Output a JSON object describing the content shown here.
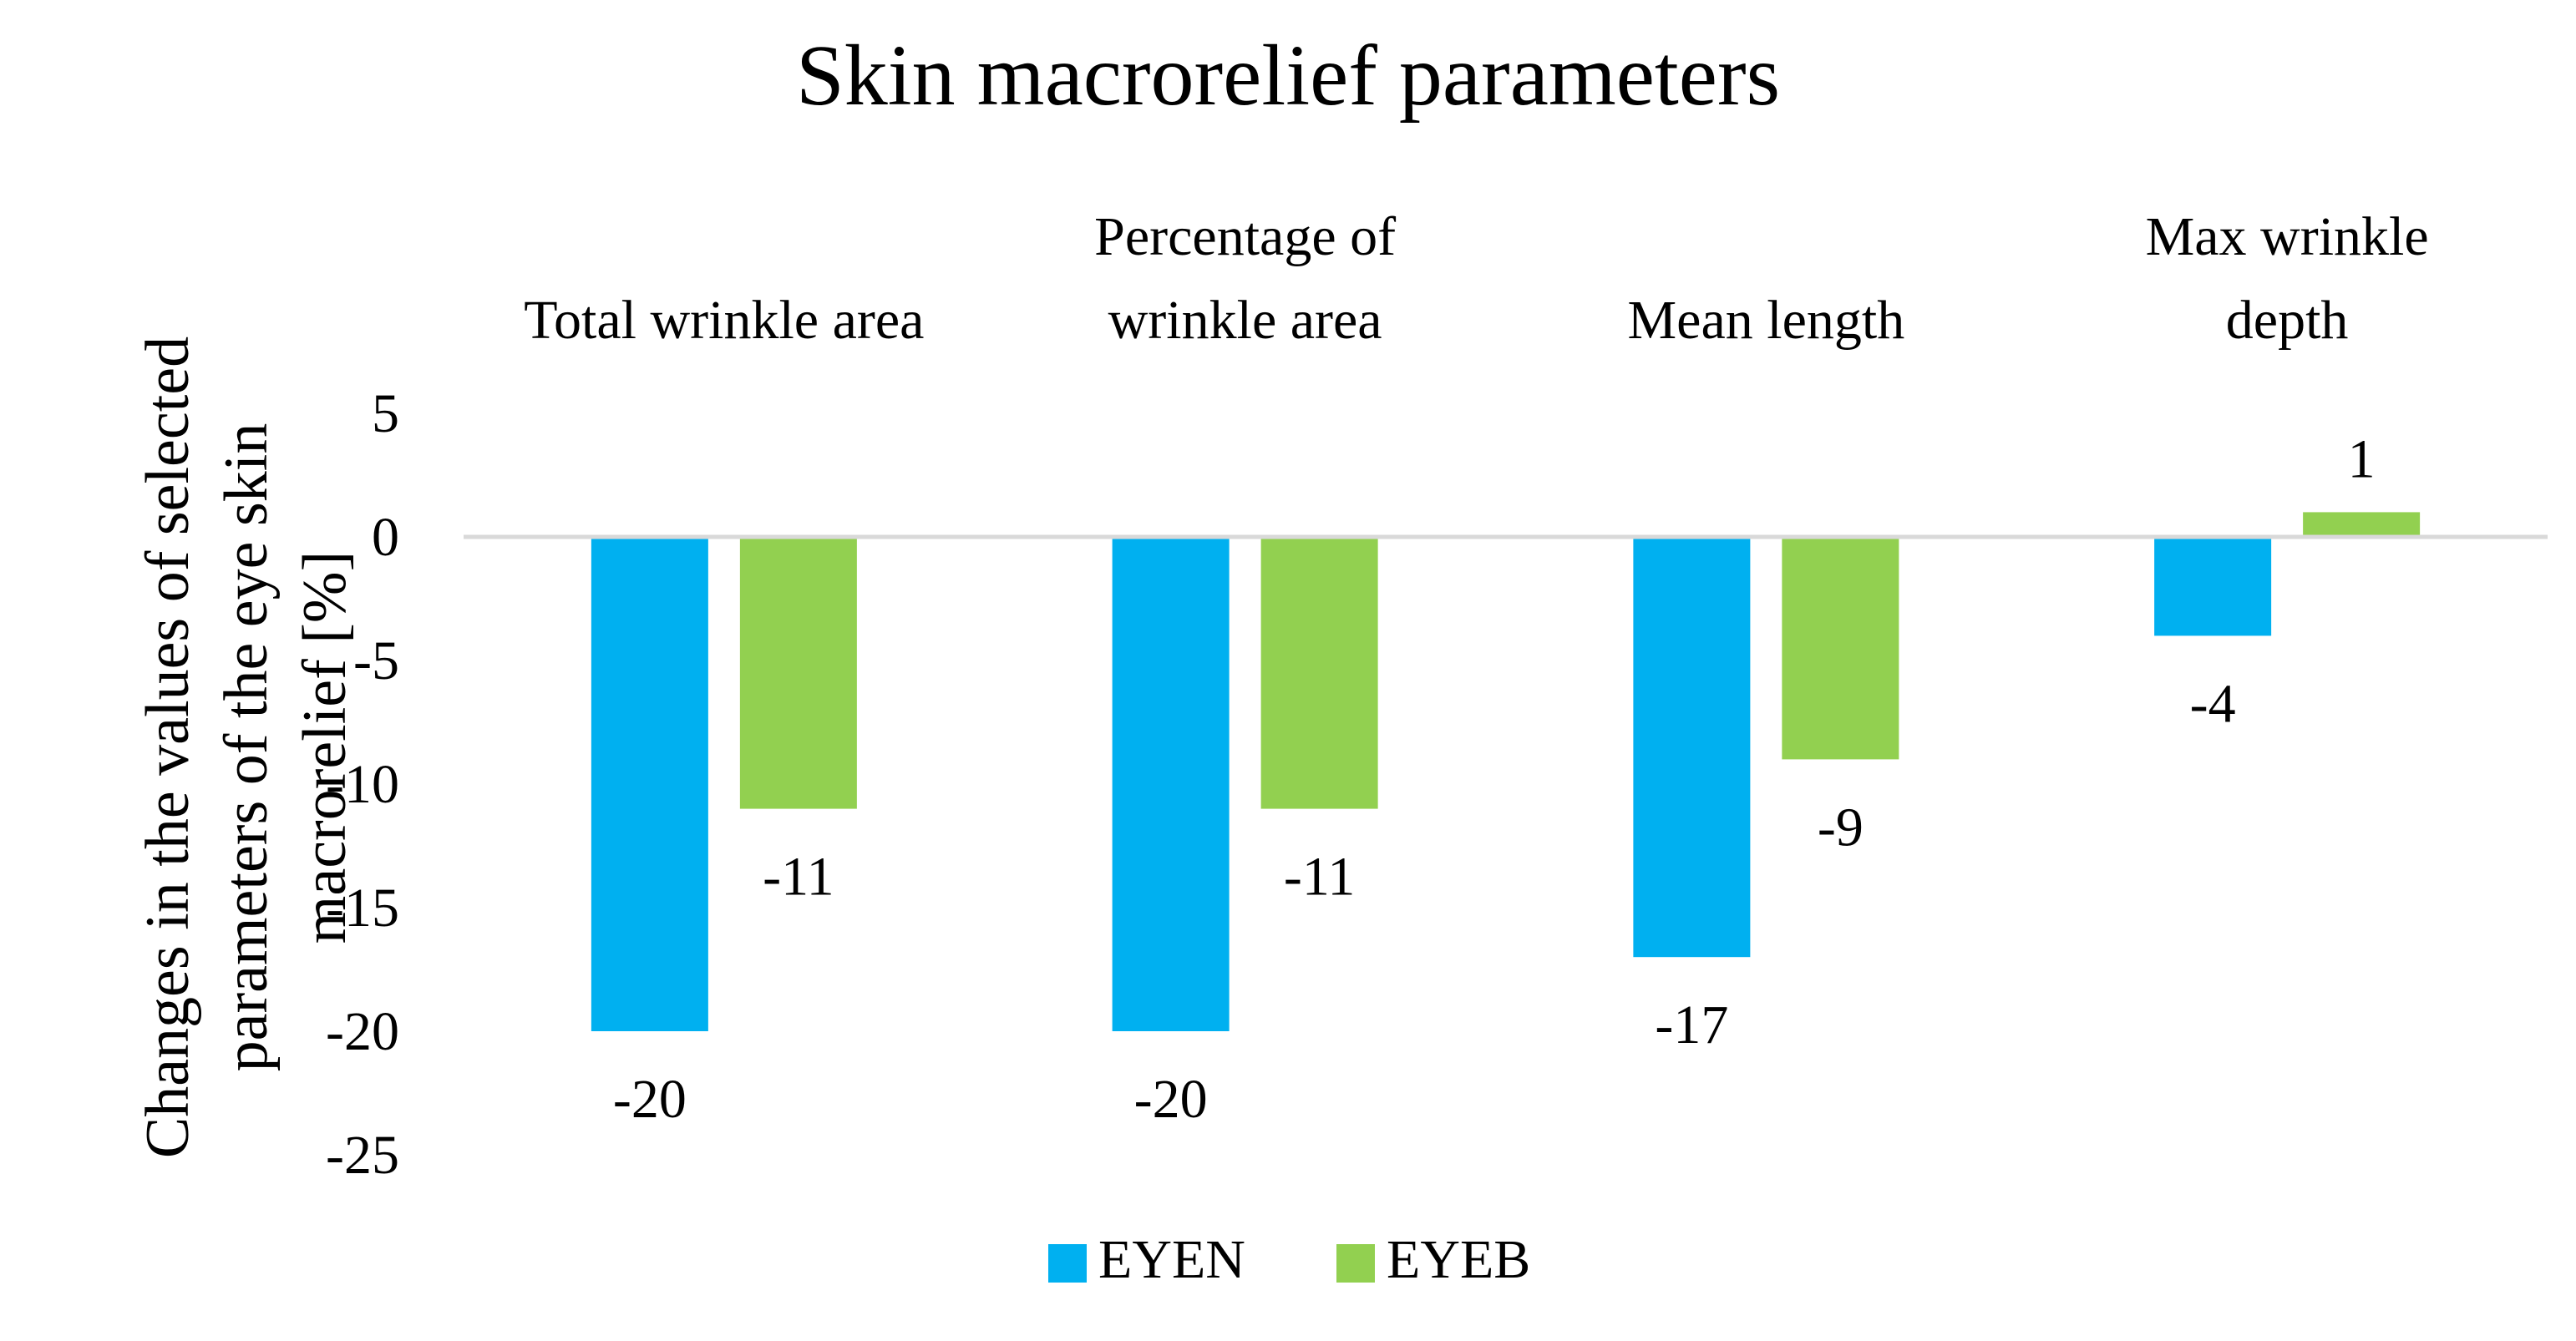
{
  "chart_data": {
    "type": "bar",
    "title": "Skin macrorelief parameters",
    "ylabel": [
      "Changes in the values of selected",
      "parameters of the eye skin",
      "macrorelief [%]"
    ],
    "xlabel": "",
    "categories": [
      [
        "Total wrinkle area"
      ],
      [
        "Percentage of",
        "wrinkle area"
      ],
      [
        "Mean length"
      ],
      [
        "Max wrinkle",
        "depth"
      ]
    ],
    "series": [
      {
        "name": "EYEN",
        "color": "#00B0F0",
        "values": [
          -20,
          -20,
          -17,
          -4
        ]
      },
      {
        "name": "EYEB",
        "color": "#92D050",
        "values": [
          -11,
          -11,
          -9,
          1
        ]
      }
    ],
    "ylim": [
      -25,
      5
    ],
    "yticks": [
      5,
      0,
      -5,
      -10,
      -15,
      -20,
      -25
    ],
    "category_labels_position": "top",
    "data_labels": true,
    "grid": false,
    "legend_position": "bottom"
  }
}
